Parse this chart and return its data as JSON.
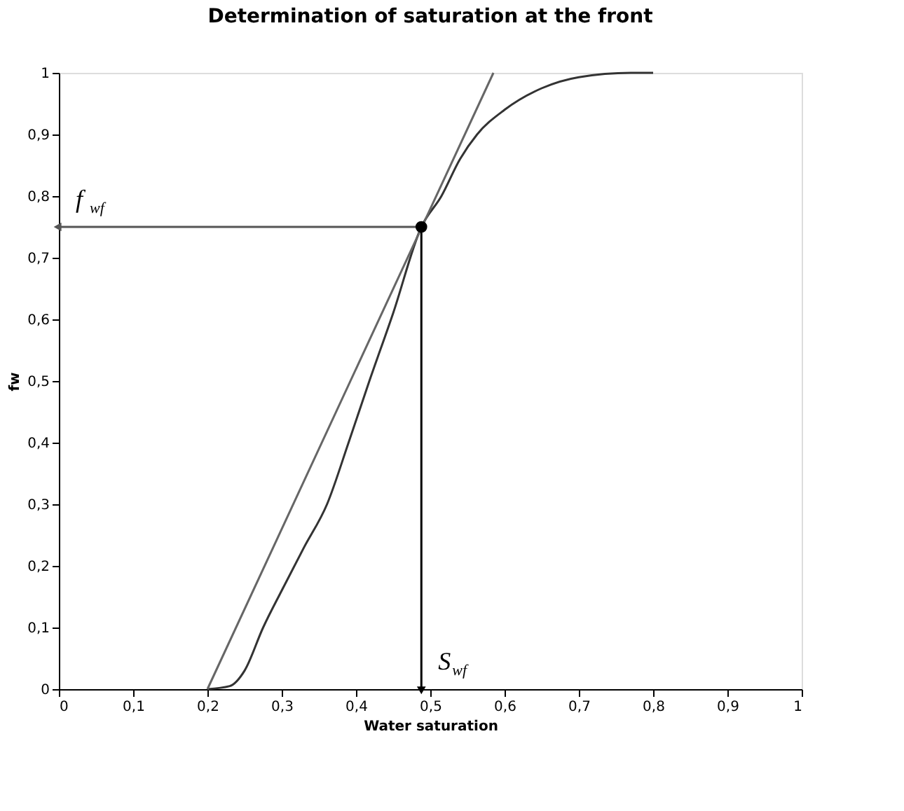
{
  "chart_data": {
    "type": "line",
    "title": "Determination of saturation at the front",
    "xlabel": "Water saturation",
    "ylabel": "fw",
    "series": [
      {
        "color": "#333333",
        "x": [
          0.2,
          0.23,
          0.25,
          0.275,
          0.3,
          0.33,
          0.361,
          0.39,
          0.418,
          0.45,
          0.488,
          0.515,
          0.54,
          0.563,
          0.6,
          0.65,
          0.7,
          0.77,
          0.8
        ],
        "values": [
          0,
          0.005,
          0.03,
          0.1,
          0.16,
          0.23,
          0.3,
          0.4,
          0.5,
          0.61,
          0.75,
          0.8,
          0.86,
          0.9,
          0.94,
          0.975,
          0.993,
          1,
          1
        ]
      },
      {
        "color": "#666666",
        "x": [
          0.2,
          0.585
        ],
        "values": [
          0,
          1
        ]
      },
      {
        "color": "#555555",
        "x": [
          0.488,
          0
        ],
        "values": [
          0.75,
          0.75
        ]
      },
      {
        "color": "#000000",
        "x": [
          0.488,
          0.488
        ],
        "values": [
          0.75,
          0
        ]
      },
      {
        "type": "scatter",
        "color": "#000000",
        "marker": "circle",
        "x": [
          0.488
        ],
        "values": [
          0.75
        ]
      }
    ],
    "annotations": [
      "f$_{wf}$",
      "S$_{wf}$"
    ],
    "xlim": [
      0,
      1
    ],
    "ylim": [
      0,
      1
    ],
    "xticks": [
      0,
      {
        "value": 0.1,
        "label": "0,1"
      },
      {
        "value": 0.2,
        "label": "0,2"
      },
      {
        "value": 0.3,
        "label": "0,3"
      },
      {
        "value": 0.4,
        "label": "0,4"
      },
      {
        "value": 0.5,
        "label": "0,5"
      },
      {
        "value": 0.6,
        "label": "0,6"
      },
      {
        "value": 0.7,
        "label": "0,7"
      },
      {
        "value": 0.8,
        "label": "0,8"
      },
      {
        "value": 0.9,
        "label": "0,9"
      },
      1
    ],
    "yticks": [
      0,
      {
        "value": 0.1,
        "label": "0,1"
      },
      {
        "value": 0.2,
        "label": "0,2"
      },
      {
        "value": 0.3,
        "label": "0,3"
      },
      {
        "value": 0.4,
        "label": "0,4"
      },
      {
        "value": 0.5,
        "label": "0,5"
      },
      {
        "value": 0.6,
        "label": "0,6"
      },
      {
        "value": 0.7,
        "label": "0,7"
      },
      {
        "value": 0.8,
        "label": "0,8"
      },
      {
        "value": 0.9,
        "label": "0,9"
      },
      1
    ],
    "grid": false
  }
}
